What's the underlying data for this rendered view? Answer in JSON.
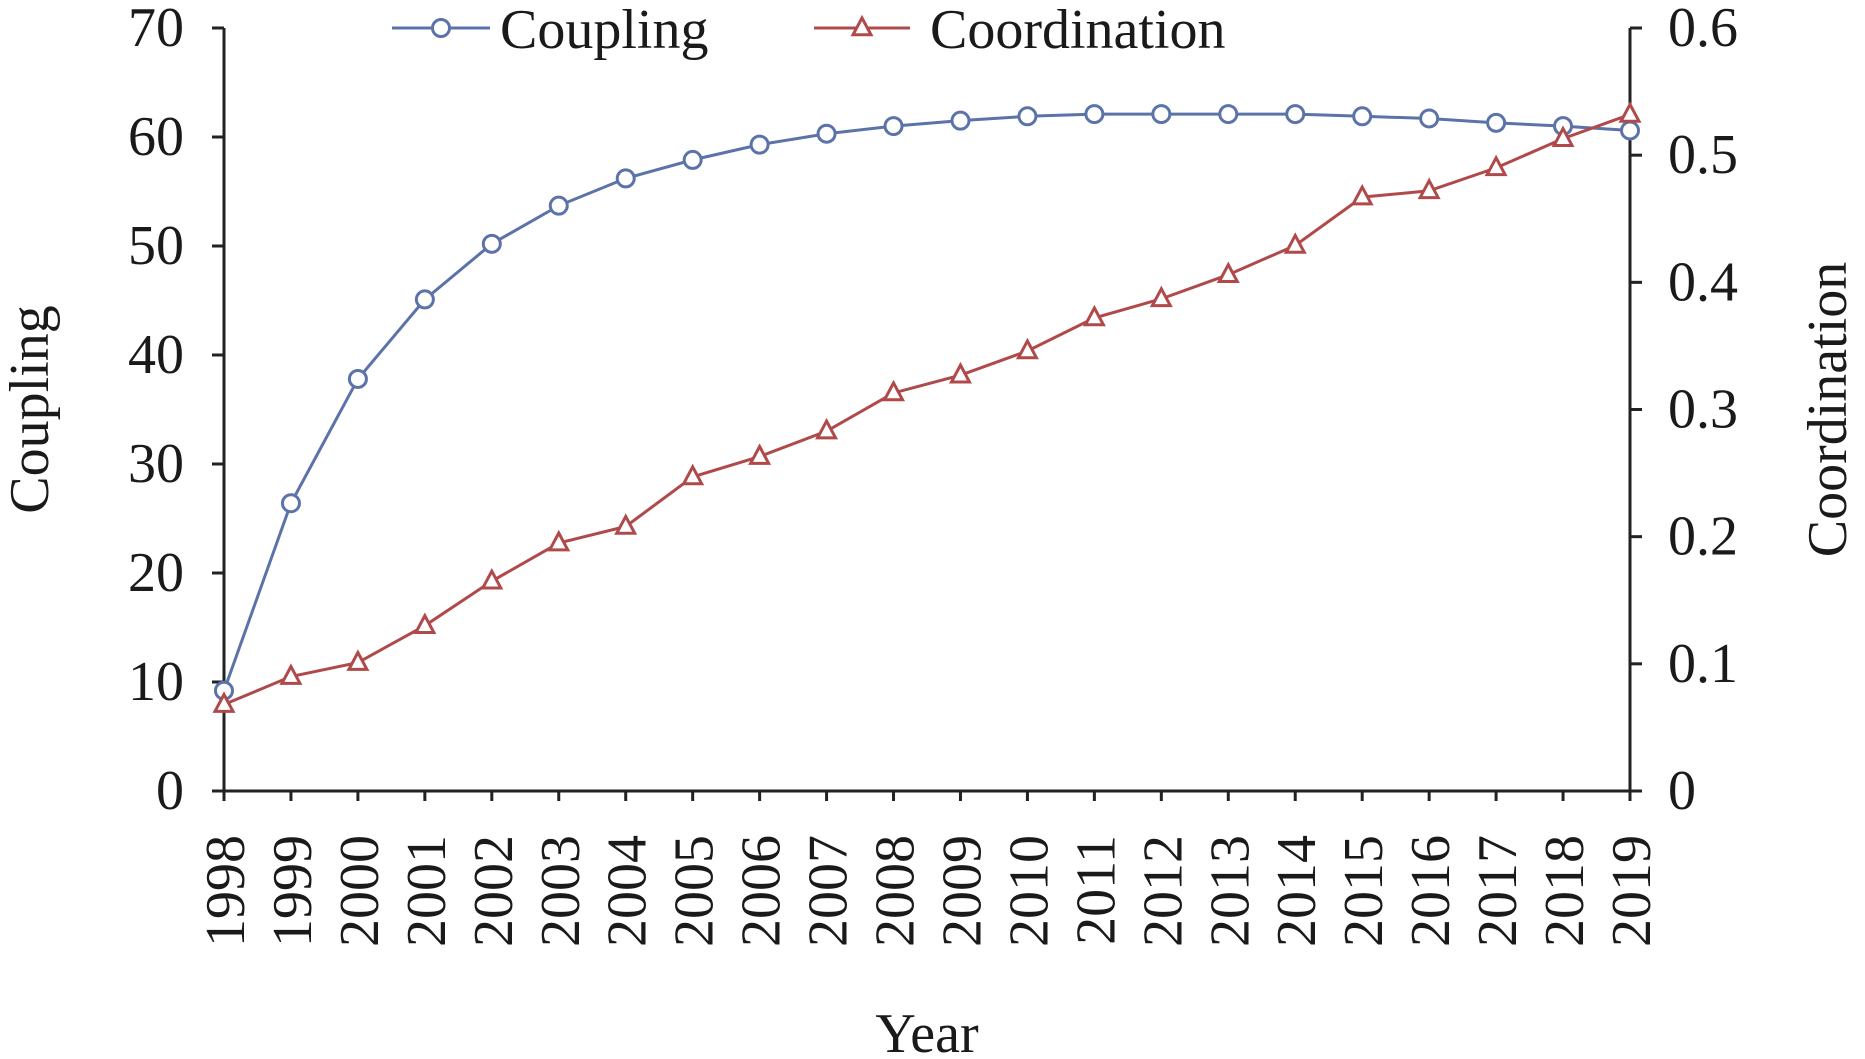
{
  "chart_data": {
    "type": "line",
    "title": "",
    "xlabel": "Year",
    "ylabel_left": "Coupling",
    "ylabel_right": "Coordination",
    "x": [
      "1998",
      "1999",
      "2000",
      "2001",
      "2002",
      "2003",
      "2004",
      "2005",
      "2006",
      "2007",
      "2008",
      "2009",
      "2010",
      "2011",
      "2012",
      "2013",
      "2014",
      "2015",
      "2016",
      "2017",
      "2018",
      "2019"
    ],
    "ylim_left": [
      0,
      70
    ],
    "yticks_left": [
      0,
      10,
      20,
      30,
      40,
      50,
      60,
      70
    ],
    "ylim_right": [
      0,
      0.6
    ],
    "yticks_right": [
      "0",
      "0.1",
      "0.2",
      "0.3",
      "0.4",
      "0.5",
      "0.6"
    ],
    "grid": false,
    "legend_position": "top-center",
    "series": [
      {
        "name": "Coupling",
        "axis": "left",
        "marker": "circle",
        "color": "#5b73a8",
        "values": [
          9.2,
          26.4,
          37.8,
          45.1,
          50.2,
          53.7,
          56.2,
          57.9,
          59.3,
          60.3,
          61.0,
          61.5,
          61.9,
          62.1,
          62.1,
          62.1,
          62.1,
          61.9,
          61.7,
          61.3,
          61.0,
          60.6
        ]
      },
      {
        "name": "Coordination",
        "axis": "right",
        "marker": "triangle",
        "color": "#b04a4a",
        "values": [
          0.068,
          0.09,
          0.101,
          0.13,
          0.165,
          0.195,
          0.208,
          0.247,
          0.263,
          0.283,
          0.313,
          0.327,
          0.346,
          0.372,
          0.387,
          0.406,
          0.429,
          0.467,
          0.472,
          0.49,
          0.513,
          0.532
        ]
      }
    ]
  }
}
